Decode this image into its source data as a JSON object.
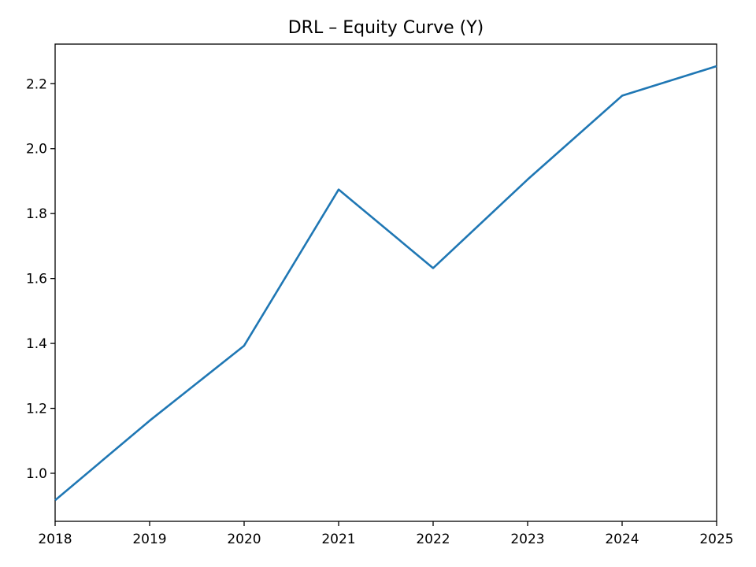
{
  "chart_data": {
    "type": "line",
    "title": "DRL – Equity Curve (Y)",
    "xlabel": "",
    "ylabel": "",
    "x": [
      "2018",
      "2019",
      "2020",
      "2021",
      "2022",
      "2023",
      "2024",
      "2025"
    ],
    "series": [
      {
        "values": [
          0.917,
          1.162,
          1.393,
          1.874,
          1.632,
          1.905,
          2.163,
          2.254
        ],
        "color": "#1f77b4"
      }
    ],
    "xlim": [
      2018,
      2025
    ],
    "ylim": [
      0.852,
      2.322
    ],
    "xticks": [
      "2018",
      "2019",
      "2020",
      "2021",
      "2022",
      "2023",
      "2024",
      "2025"
    ],
    "yticks": [
      "1.0",
      "1.2",
      "1.4",
      "1.6",
      "1.8",
      "2.0",
      "2.2"
    ],
    "grid": false,
    "legend": "none"
  }
}
